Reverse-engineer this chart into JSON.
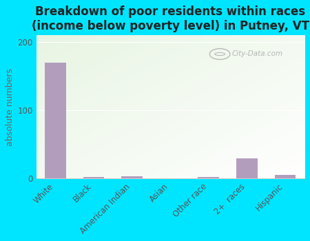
{
  "title": "Breakdown of poor residents within races\n(income below poverty level) in Putney, VT",
  "categories": [
    "White",
    "Black",
    "American Indian",
    "Asian",
    "Other race",
    "2+  races",
    "Hispanic"
  ],
  "values": [
    170,
    2,
    3,
    0,
    2,
    30,
    5
  ],
  "bar_color": "#b39dbd",
  "ylabel": "absolute numbers",
  "yticks": [
    0,
    100,
    200
  ],
  "ylim": [
    0,
    210
  ],
  "bg_top_color": "#e8f5e4",
  "bg_bottom_color": "#f8fdf6",
  "outer_background": "#00e5ff",
  "title_fontsize": 12,
  "axis_label_fontsize": 9,
  "tick_fontsize": 8.5
}
